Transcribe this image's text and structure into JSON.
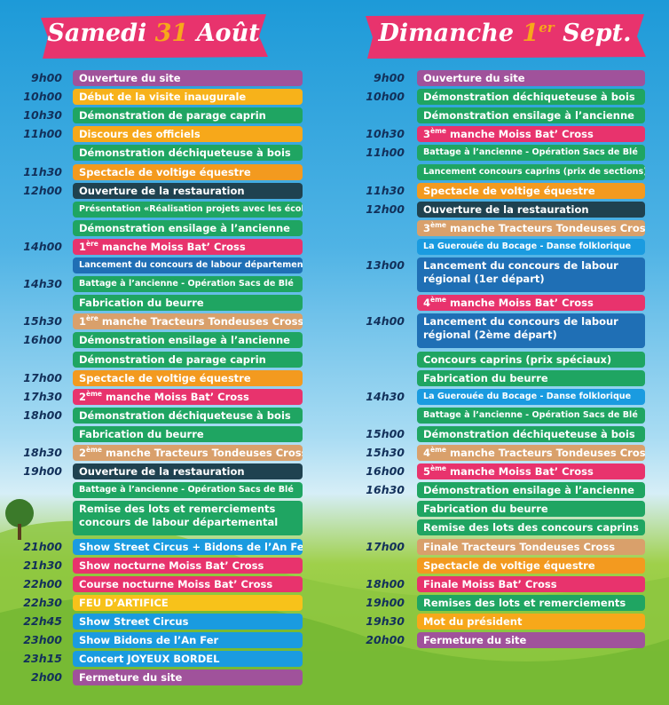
{
  "days": [
    {
      "title": {
        "before": "Samedi",
        "number": "31",
        "after": "Août"
      },
      "items": [
        {
          "time": "9h00",
          "text": "Ouverture du site",
          "color": "#a0529b"
        },
        {
          "time": "10h00",
          "text": "Début de la visite inaugurale",
          "color": "#f7b21a"
        },
        {
          "time": "10h30",
          "text": "Démonstration de parage caprin",
          "color": "#1fa562"
        },
        {
          "time": "11h00",
          "text": "Discours des officiels",
          "color": "#f7a81a"
        },
        {
          "text": "Démonstration déchiqueteuse à bois",
          "color": "#1fa562"
        },
        {
          "time": "11h30",
          "text": "Spectacle de voltige équestre",
          "color": "#f39a1f"
        },
        {
          "time": "12h00",
          "text": "Ouverture de la restauration",
          "color": "#1f4250"
        },
        {
          "text": "Présentation «Réalisation projets avec les écoles»",
          "color": "#1fa562"
        },
        {
          "text": "Démonstration ensilage à l’ancienne",
          "color": "#1fa562"
        },
        {
          "time": "14h00",
          "ordinal": "1",
          "ordinal_suffix": "ère",
          "text": "manche Moiss Bat’ Cross",
          "color": "#e8336d"
        },
        {
          "text": "Lancement du concours de labour départemental",
          "color": "#1f6fb5"
        },
        {
          "time": "14h30",
          "text": "Battage à l’ancienne - Opération Sacs de Blé",
          "color": "#1fa562"
        },
        {
          "text": "Fabrication du beurre",
          "color": "#1fa562"
        },
        {
          "time": "15h30",
          "ordinal": "1",
          "ordinal_suffix": "ère",
          "text": "manche Tracteurs Tondeuses Cross",
          "color": "#d9a06b"
        },
        {
          "time": "16h00",
          "text": "Démonstration ensilage à l’ancienne",
          "color": "#1fa562"
        },
        {
          "text": "Démonstration de parage caprin",
          "color": "#1fa562"
        },
        {
          "time": "17h00",
          "text": "Spectacle de voltige équestre",
          "color": "#f39a1f"
        },
        {
          "time": "17h30",
          "ordinal": "2",
          "ordinal_suffix": "ème",
          "text": "manche Moiss Bat’ Cross",
          "color": "#e8336d"
        },
        {
          "time": "18h00",
          "text": "Démonstration déchiqueteuse à bois",
          "color": "#1fa562"
        },
        {
          "text": "Fabrication du beurre",
          "color": "#1fa562"
        },
        {
          "time": "18h30",
          "ordinal": "2",
          "ordinal_suffix": "ème",
          "text": "manche Tracteurs Tondeuses Cross",
          "color": "#d9a06b"
        },
        {
          "time": "19h00",
          "text": "Ouverture de la restauration",
          "color": "#1f4250"
        },
        {
          "text": "Battage à l’ancienne - Opération Sacs de Blé",
          "color": "#1fa562"
        },
        {
          "text": "Remise des lots et remerciements concours de labour départemental",
          "color": "#1fa562"
        },
        {
          "time": "21h00",
          "text": "Show Street Circus + Bidons de l’An Fer",
          "color": "#1a9be0"
        },
        {
          "time": "21h30",
          "text": "Show nocturne Moiss Bat’ Cross",
          "color": "#e8336d"
        },
        {
          "time": "22h00",
          "text": "Course nocturne Moiss Bat’ Cross",
          "color": "#e8336d"
        },
        {
          "time": "22h30",
          "text": "FEU D’ARTIFICE",
          "color": "#f7c21a"
        },
        {
          "time": "22h45",
          "text": "Show Street Circus",
          "color": "#1a9be0"
        },
        {
          "time": "23h00",
          "text": "Show Bidons de l’An Fer",
          "color": "#1a9be0"
        },
        {
          "time": "23h15",
          "text": "Concert JOYEUX BORDEL",
          "color": "#1a9be0"
        },
        {
          "time": "2h00",
          "text": "Fermeture du site",
          "color": "#a0529b"
        }
      ]
    },
    {
      "title": {
        "before": "Dimanche",
        "number": "1",
        "number_suffix": "er",
        "after": "Sept."
      },
      "items": [
        {
          "time": "9h00",
          "text": "Ouverture du site",
          "color": "#a0529b"
        },
        {
          "time": "10h00",
          "text": "Démonstration déchiqueteuse à bois",
          "color": "#1fa562"
        },
        {
          "text": "Démonstration ensilage à l’ancienne",
          "color": "#1fa562"
        },
        {
          "time": "10h30",
          "ordinal": "3",
          "ordinal_suffix": "ème",
          "text": "manche Moiss Bat’ Cross",
          "color": "#e8336d"
        },
        {
          "time": "11h00",
          "text": "Battage à l’ancienne - Opération Sacs de Blé",
          "color": "#1fa562"
        },
        {
          "text": "Lancement concours caprins (prix de sections)",
          "color": "#1fa562"
        },
        {
          "time": "11h30",
          "text": "Spectacle de voltige équestre",
          "color": "#f39a1f"
        },
        {
          "time": "12h00",
          "text": "Ouverture de la restauration",
          "color": "#1f4250"
        },
        {
          "ordinal": "3",
          "ordinal_suffix": "ème",
          "text": "manche Tracteurs Tondeuses Cross",
          "color": "#d9a06b"
        },
        {
          "text": "La Guerouée du Bocage - Danse folklorique",
          "color": "#1a9be0"
        },
        {
          "time": "13h00",
          "text": "Lancement du concours de labour régional (1er départ)",
          "color": "#1f6fb5"
        },
        {
          "ordinal": "4",
          "ordinal_suffix": "ème",
          "text": "manche Moiss Bat’ Cross",
          "color": "#e8336d"
        },
        {
          "time": "14h00",
          "text": "Lancement du concours de labour régional (2ème départ)",
          "color": "#1f6fb5"
        },
        {
          "text": "Concours caprins (prix spéciaux)",
          "color": "#1fa562"
        },
        {
          "text": "Fabrication du beurre",
          "color": "#1fa562"
        },
        {
          "time": "14h30",
          "text": "La Guerouée du Bocage - Danse folklorique",
          "color": "#1a9be0"
        },
        {
          "text": "Battage à l’ancienne - Opération Sacs de Blé",
          "color": "#1fa562"
        },
        {
          "time": "15h00",
          "text": "Démonstration déchiqueteuse à bois",
          "color": "#1fa562"
        },
        {
          "time": "15h30",
          "ordinal": "4",
          "ordinal_suffix": "ème",
          "text": "manche Tracteurs Tondeuses Cross",
          "color": "#d9a06b"
        },
        {
          "time": "16h00",
          "ordinal": "5",
          "ordinal_suffix": "ème",
          "text": "manche Moiss Bat’ Cross",
          "color": "#e8336d"
        },
        {
          "time": "16h30",
          "text": "Démonstration ensilage à l’ancienne",
          "color": "#1fa562"
        },
        {
          "text": "Fabrication du beurre",
          "color": "#1fa562"
        },
        {
          "text": "Remise des lots des concours caprins",
          "color": "#1fa562"
        },
        {
          "time": "17h00",
          "text": "Finale Tracteurs Tondeuses Cross",
          "color": "#d9a06b"
        },
        {
          "text": "Spectacle de voltige équestre",
          "color": "#f39a1f"
        },
        {
          "time": "18h00",
          "text": "Finale Moiss Bat’ Cross",
          "color": "#e8336d"
        },
        {
          "time": "19h00",
          "text": "Remises des lots et remerciements",
          "color": "#1fa562"
        },
        {
          "time": "19h30",
          "text": "Mot du président",
          "color": "#f7a81a"
        },
        {
          "time": "20h00",
          "text": "Fermeture du site",
          "color": "#a0529b"
        }
      ]
    }
  ]
}
